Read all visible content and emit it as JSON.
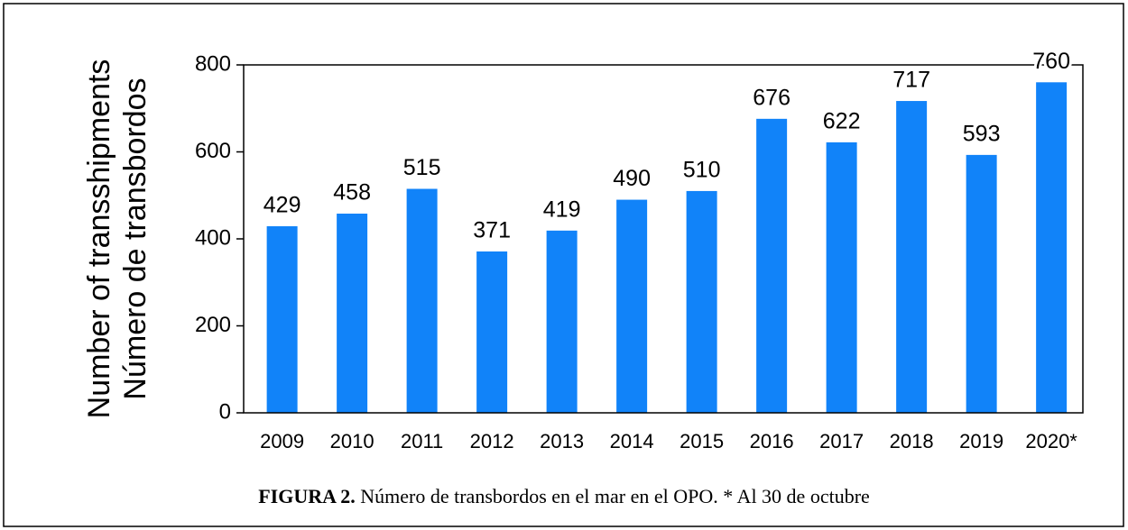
{
  "chart_data": {
    "type": "bar",
    "ylabel": [
      "Number of transshipments",
      "Número de transbordos"
    ],
    "categories": [
      "2009",
      "2010",
      "2011",
      "2012",
      "2013",
      "2014",
      "2015",
      "2016",
      "2017",
      "2018",
      "2019",
      "2020*"
    ],
    "values": [
      429,
      458,
      515,
      371,
      419,
      490,
      510,
      676,
      622,
      717,
      593,
      760
    ],
    "color": "#1183f9",
    "ylim": [
      0,
      800
    ],
    "yticks": [
      0,
      200,
      400,
      600,
      800
    ],
    "caption_label": "FIGURA 2.",
    "caption_text": "Número de transbordos en el mar en el OPO. * Al 30 de octubre"
  }
}
